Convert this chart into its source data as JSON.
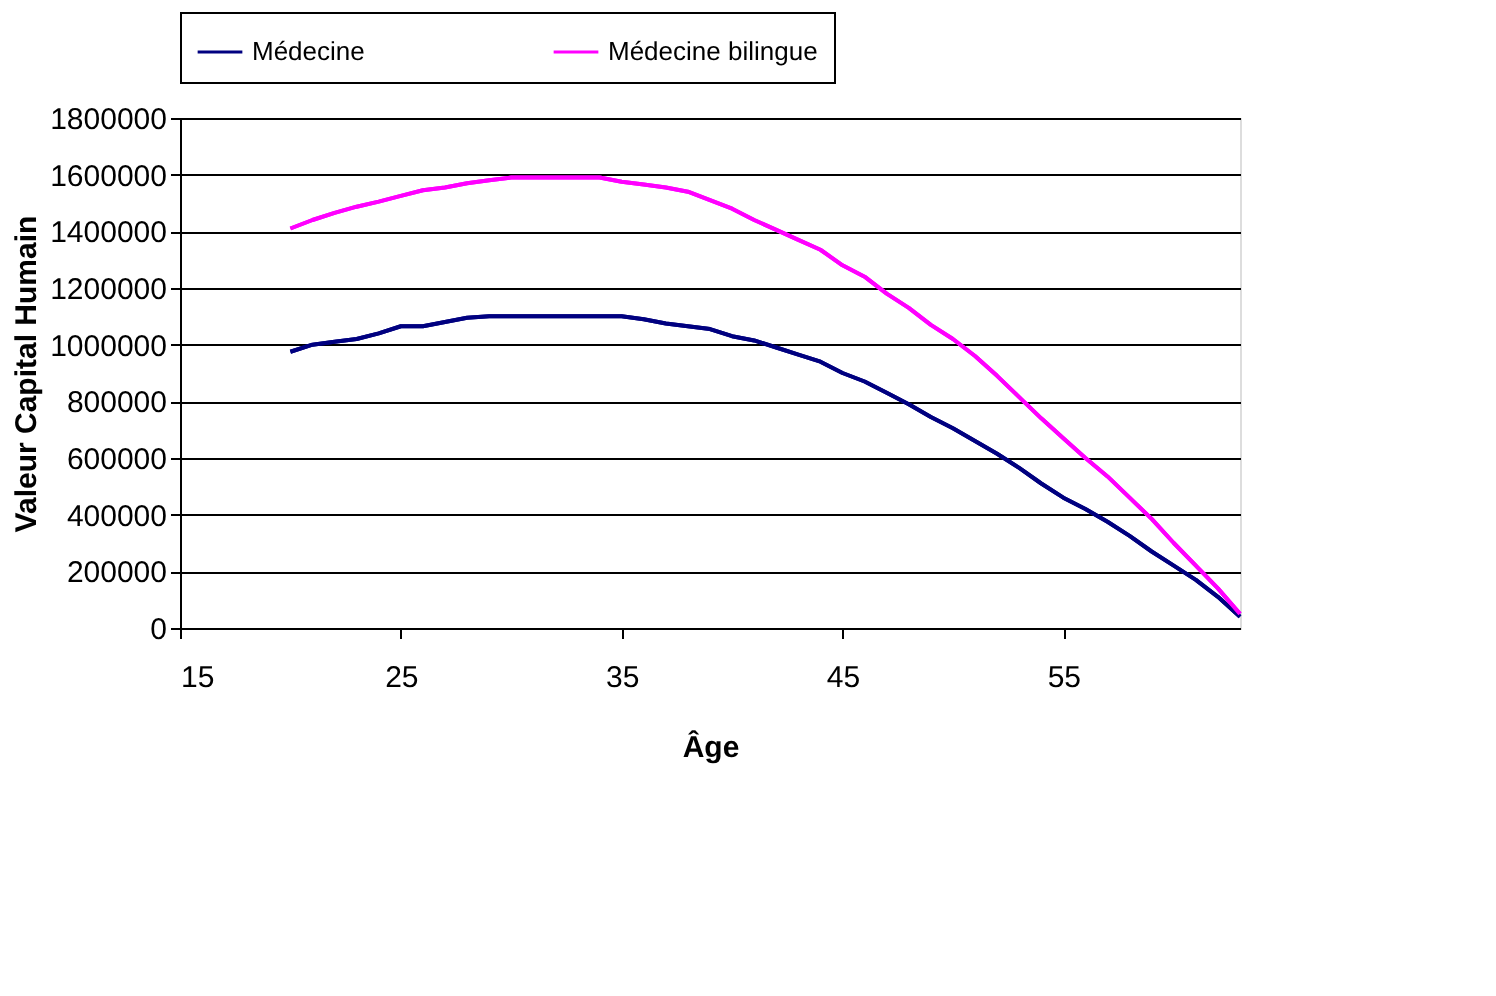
{
  "chart_data": {
    "type": "line",
    "xlabel": "Âge",
    "ylabel": "Valeur Capital Humain",
    "x": [
      20,
      21,
      22,
      23,
      24,
      25,
      26,
      27,
      28,
      29,
      30,
      31,
      32,
      33,
      34,
      35,
      36,
      37,
      38,
      39,
      40,
      41,
      42,
      43,
      44,
      45,
      46,
      47,
      48,
      49,
      50,
      51,
      52,
      53,
      54,
      55,
      56,
      57,
      58,
      59,
      60,
      61,
      62,
      63
    ],
    "series": [
      {
        "name": "Médecine",
        "color": "#000080",
        "values": [
          975000,
          1000000,
          1010000,
          1020000,
          1040000,
          1065000,
          1065000,
          1080000,
          1095000,
          1100000,
          1100000,
          1100000,
          1100000,
          1100000,
          1100000,
          1100000,
          1090000,
          1075000,
          1065000,
          1055000,
          1030000,
          1015000,
          990000,
          965000,
          940000,
          900000,
          870000,
          830000,
          790000,
          745000,
          705000,
          660000,
          615000,
          565000,
          510000,
          460000,
          420000,
          375000,
          325000,
          270000,
          220000,
          170000,
          110000,
          40000
        ]
      },
      {
        "name": "Médecine bilingue",
        "color": "#ff00ff",
        "values": [
          1410000,
          1440000,
          1465000,
          1487000,
          1505000,
          1525000,
          1545000,
          1555000,
          1570000,
          1580000,
          1590000,
          1590000,
          1590000,
          1590000,
          1590000,
          1575000,
          1565000,
          1555000,
          1540000,
          1510000,
          1480000,
          1440000,
          1405000,
          1370000,
          1335000,
          1280000,
          1240000,
          1180000,
          1130000,
          1070000,
          1020000,
          960000,
          890000,
          815000,
          740000,
          670000,
          600000,
          535000,
          460000,
          385000,
          300000,
          220000,
          140000,
          50000
        ]
      }
    ],
    "xlim": [
      15,
      63
    ],
    "xticks": [
      15,
      25,
      35,
      45,
      55
    ],
    "ylim": [
      0,
      1800000
    ],
    "yticks": [
      0,
      200000,
      400000,
      600000,
      800000,
      1000000,
      1200000,
      1400000,
      1600000,
      1800000
    ],
    "grid": "y",
    "legend": "top",
    "marker": "none",
    "line_style": "solid"
  }
}
